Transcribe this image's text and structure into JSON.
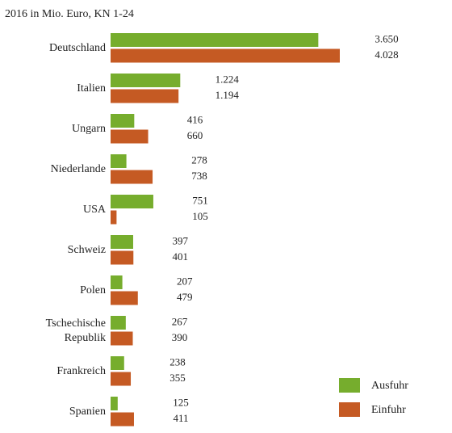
{
  "chart_data": {
    "type": "bar",
    "orientation": "horizontal",
    "title": "2016 in Mio. Euro, KN 1-24",
    "categories": [
      "Deutschland",
      "Italien",
      "Ungarn",
      "Niederlande",
      "USA",
      "Schweiz",
      "Polen",
      "Tschechische Republik",
      "Frankreich",
      "Spanien"
    ],
    "series": [
      {
        "name": "Ausfuhr",
        "color": "#76ad2d",
        "values": [
          3650,
          1224,
          416,
          278,
          751,
          397,
          207,
          267,
          238,
          125
        ],
        "value_labels": [
          "3.650",
          "1.224",
          "416",
          "278",
          "751",
          "397",
          "207",
          "267",
          "238",
          "125"
        ]
      },
      {
        "name": "Einfuhr",
        "color": "#c55a23",
        "values": [
          4028,
          1194,
          660,
          738,
          105,
          401,
          479,
          390,
          355,
          411
        ],
        "value_labels": [
          "4.028",
          "1.194",
          "660",
          "738",
          "105",
          "401",
          "479",
          "390",
          "355",
          "411"
        ]
      }
    ],
    "legend": "bottom-right"
  }
}
